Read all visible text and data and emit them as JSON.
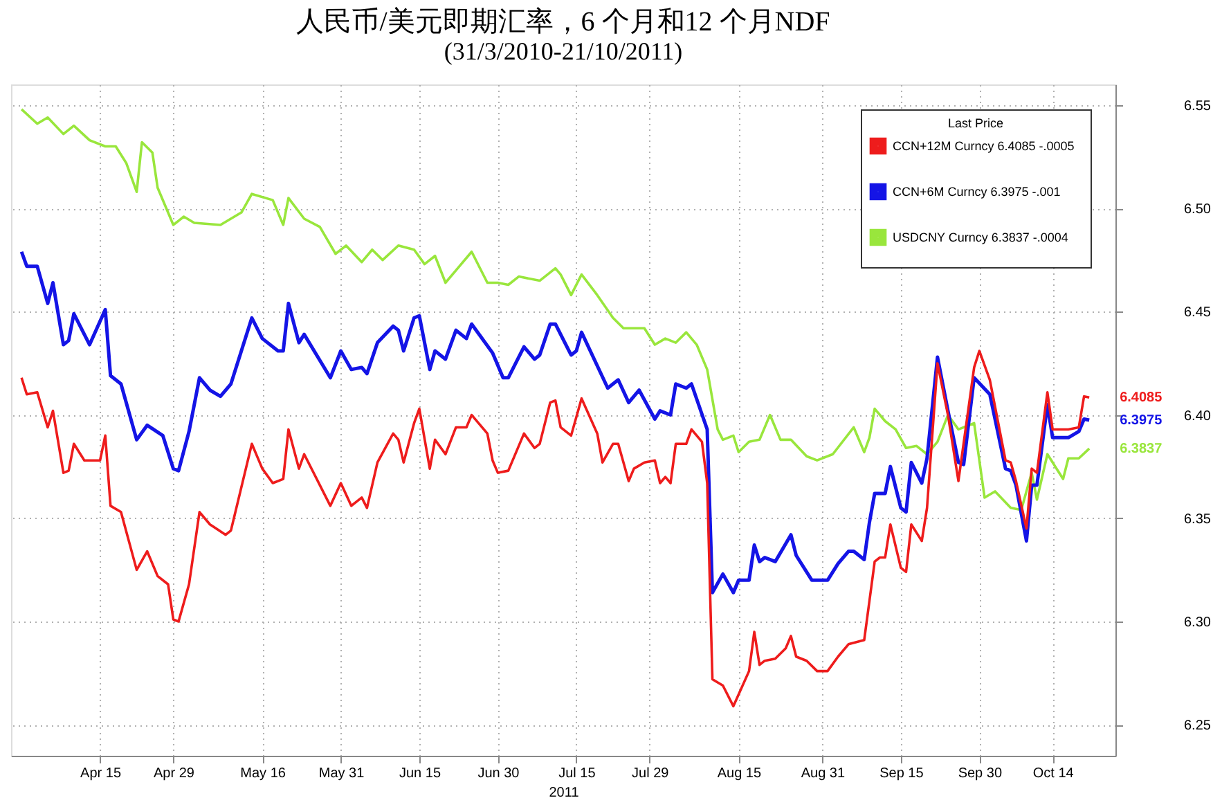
{
  "chart_data": {
    "type": "line",
    "title": "人民币/美元即期汇率，6 个月和12 个月NDF",
    "subtitle": "(31/3/2010-21/10/2011)",
    "xlabel": "2011",
    "legend_title": "Last Price",
    "legend": "top right",
    "grid": true,
    "marker": "none",
    "line_style": "solid",
    "xlim": [
      "2011-03-29",
      "2011-10-26"
    ],
    "xticks": [
      {
        "value": "2011-04-15",
        "label": "Apr 15"
      },
      {
        "value": "2011-04-29",
        "label": "Apr 29"
      },
      {
        "value": "2011-05-16",
        "label": "May 16"
      },
      {
        "value": "2011-05-31",
        "label": "May 31"
      },
      {
        "value": "2011-06-15",
        "label": "Jun 15"
      },
      {
        "value": "2011-06-30",
        "label": "Jun 30"
      },
      {
        "value": "2011-07-15",
        "label": "Jul 15"
      },
      {
        "value": "2011-07-29",
        "label": "Jul 29"
      },
      {
        "value": "2011-08-15",
        "label": "Aug 15"
      },
      {
        "value": "2011-08-31",
        "label": "Aug 31"
      },
      {
        "value": "2011-09-15",
        "label": "Sep 15"
      },
      {
        "value": "2011-09-30",
        "label": "Sep 30"
      },
      {
        "value": "2011-10-14",
        "label": "Oct 14"
      }
    ],
    "ylim": [
      6.235,
      6.56
    ],
    "yticks": [
      6.25,
      {
        "value": 6.3,
        "label": "6.30"
      },
      6.35,
      {
        "value": 6.4,
        "label": "6.40"
      },
      6.45,
      {
        "value": 6.5,
        "label": "6.50"
      },
      6.55
    ],
    "annotations": [
      {
        "text": "6.4085",
        "x": "2011-10-21",
        "y": 6.4085
      },
      {
        "text": "6.3975",
        "x": "2011-10-21",
        "y": 6.3975
      },
      {
        "text": "6.3837",
        "x": "2011-10-21",
        "y": 6.3837
      }
    ],
    "series": [
      {
        "name": "CCN+12M Curncy  6.4085  -.0005",
        "color": "#ee1c1c",
        "x": [
          "2011-03-31",
          "2011-04-01",
          "2011-04-03",
          "2011-04-05",
          "2011-04-06",
          "2011-04-08",
          "2011-04-09",
          "2011-04-10",
          "2011-04-12",
          "2011-04-15",
          "2011-04-16",
          "2011-04-17",
          "2011-04-19",
          "2011-04-22",
          "2011-04-24",
          "2011-04-26",
          "2011-04-28",
          "2011-04-29",
          "2011-04-30",
          "2011-05-02",
          "2011-05-04",
          "2011-05-06",
          "2011-05-09",
          "2011-05-10",
          "2011-05-14",
          "2011-05-16",
          "2011-05-18",
          "2011-05-20",
          "2011-05-21",
          "2011-05-23",
          "2011-05-24",
          "2011-05-29",
          "2011-05-31",
          "2011-06-02",
          "2011-06-04",
          "2011-06-05",
          "2011-06-07",
          "2011-06-10",
          "2011-06-11",
          "2011-06-12",
          "2011-06-14",
          "2011-06-15",
          "2011-06-17",
          "2011-06-18",
          "2011-06-20",
          "2011-06-22",
          "2011-06-24",
          "2011-06-25",
          "2011-06-28",
          "2011-06-29",
          "2011-06-30",
          "2011-07-02",
          "2011-07-05",
          "2011-07-07",
          "2011-07-08",
          "2011-07-10",
          "2011-07-11",
          "2011-07-12",
          "2011-07-14",
          "2011-07-16",
          "2011-07-19",
          "2011-07-20",
          "2011-07-22",
          "2011-07-23",
          "2011-07-25",
          "2011-07-26",
          "2011-07-28",
          "2011-07-30",
          "2011-07-31",
          "2011-08-01",
          "2011-08-02",
          "2011-08-03",
          "2011-08-05",
          "2011-08-06",
          "2011-08-08",
          "2011-08-09",
          "2011-08-10",
          "2011-08-12",
          "2011-08-14",
          "2011-08-17",
          "2011-08-18",
          "2011-08-19",
          "2011-08-20",
          "2011-08-22",
          "2011-08-24",
          "2011-08-25",
          "2011-08-26",
          "2011-08-28",
          "2011-08-30",
          "2011-09-01",
          "2011-09-03",
          "2011-09-05",
          "2011-09-08",
          "2011-09-09",
          "2011-09-10",
          "2011-09-11",
          "2011-09-12",
          "2011-09-13",
          "2011-09-15",
          "2011-09-16",
          "2011-09-17",
          "2011-09-19",
          "2011-09-20",
          "2011-09-22",
          "2011-09-24",
          "2011-09-26",
          "2011-09-29",
          "2011-09-30",
          "2011-10-02",
          "2011-10-05",
          "2011-10-06",
          "2011-10-07",
          "2011-10-09",
          "2011-10-10",
          "2011-10-11",
          "2011-10-13",
          "2011-10-14",
          "2011-10-17",
          "2011-10-19",
          "2011-10-20",
          "2011-10-21"
        ],
        "values": [
          6.418,
          6.41,
          6.411,
          6.394,
          6.402,
          6.372,
          6.373,
          6.386,
          6.378,
          6.378,
          6.39,
          6.356,
          6.353,
          6.325,
          6.334,
          6.322,
          6.318,
          6.301,
          6.3,
          6.318,
          6.353,
          6.347,
          6.342,
          6.344,
          6.386,
          6.374,
          6.367,
          6.369,
          6.393,
          6.374,
          6.381,
          6.356,
          6.367,
          6.356,
          6.36,
          6.355,
          6.377,
          6.391,
          6.388,
          6.377,
          6.396,
          6.403,
          6.374,
          6.388,
          6.381,
          6.394,
          6.394,
          6.4,
          6.391,
          6.378,
          6.372,
          6.373,
          6.391,
          6.384,
          6.386,
          6.406,
          6.407,
          6.394,
          6.39,
          6.408,
          6.391,
          6.377,
          6.386,
          6.386,
          6.368,
          6.374,
          6.377,
          6.378,
          6.367,
          6.37,
          6.367,
          6.386,
          6.386,
          6.393,
          6.387,
          6.367,
          6.272,
          6.269,
          6.259,
          6.276,
          6.295,
          6.279,
          6.281,
          6.282,
          6.287,
          6.293,
          6.283,
          6.281,
          6.276,
          6.276,
          6.283,
          6.289,
          6.291,
          6.31,
          6.329,
          6.331,
          6.331,
          6.347,
          6.326,
          6.324,
          6.347,
          6.339,
          6.355,
          6.425,
          6.4,
          6.368,
          6.423,
          6.431,
          6.417,
          6.378,
          6.377,
          6.368,
          6.345,
          6.374,
          6.372,
          6.411,
          6.393,
          6.393,
          6.394,
          6.409,
          6.4085
        ]
      },
      {
        "name": "CCN+6M Curncy  6.3975  -.001",
        "color": "#1414e6",
        "x": [
          "2011-03-31",
          "2011-04-01",
          "2011-04-03",
          "2011-04-05",
          "2011-04-06",
          "2011-04-08",
          "2011-04-09",
          "2011-04-10",
          "2011-04-13",
          "2011-04-16",
          "2011-04-17",
          "2011-04-19",
          "2011-04-22",
          "2011-04-24",
          "2011-04-27",
          "2011-04-29",
          "2011-04-30",
          "2011-05-02",
          "2011-05-04",
          "2011-05-06",
          "2011-05-08",
          "2011-05-10",
          "2011-05-14",
          "2011-05-16",
          "2011-05-19",
          "2011-05-20",
          "2011-05-21",
          "2011-05-23",
          "2011-05-24",
          "2011-05-29",
          "2011-05-31",
          "2011-06-02",
          "2011-06-04",
          "2011-06-05",
          "2011-06-07",
          "2011-06-10",
          "2011-06-11",
          "2011-06-12",
          "2011-06-14",
          "2011-06-15",
          "2011-06-17",
          "2011-06-18",
          "2011-06-20",
          "2011-06-22",
          "2011-06-24",
          "2011-06-25",
          "2011-06-29",
          "2011-07-01",
          "2011-07-02",
          "2011-07-05",
          "2011-07-07",
          "2011-07-08",
          "2011-07-10",
          "2011-07-11",
          "2011-07-14",
          "2011-07-15",
          "2011-07-16",
          "2011-07-21",
          "2011-07-23",
          "2011-07-25",
          "2011-07-27",
          "2011-07-30",
          "2011-07-31",
          "2011-08-02",
          "2011-08-03",
          "2011-08-05",
          "2011-08-06",
          "2011-08-09",
          "2011-08-10",
          "2011-08-12",
          "2011-08-14",
          "2011-08-15",
          "2011-08-17",
          "2011-08-18",
          "2011-08-19",
          "2011-08-20",
          "2011-08-22",
          "2011-08-25",
          "2011-08-26",
          "2011-08-29",
          "2011-09-01",
          "2011-09-03",
          "2011-09-05",
          "2011-09-06",
          "2011-09-08",
          "2011-09-09",
          "2011-09-10",
          "2011-09-12",
          "2011-09-13",
          "2011-09-15",
          "2011-09-16",
          "2011-09-17",
          "2011-09-19",
          "2011-09-20",
          "2011-09-22",
          "2011-09-24",
          "2011-09-26",
          "2011-09-27",
          "2011-09-29",
          "2011-10-02",
          "2011-10-05",
          "2011-10-06",
          "2011-10-07",
          "2011-10-09",
          "2011-10-10",
          "2011-10-11",
          "2011-10-13",
          "2011-10-14",
          "2011-10-17",
          "2011-10-19",
          "2011-10-20",
          "2011-10-21"
        ],
        "values": [
          6.479,
          6.472,
          6.472,
          6.454,
          6.464,
          6.434,
          6.436,
          6.449,
          6.434,
          6.451,
          6.419,
          6.415,
          6.388,
          6.395,
          6.39,
          6.374,
          6.373,
          6.392,
          6.418,
          6.412,
          6.409,
          6.415,
          6.447,
          6.437,
          6.431,
          6.431,
          6.454,
          6.435,
          6.439,
          6.418,
          6.431,
          6.422,
          6.423,
          6.42,
          6.435,
          6.443,
          6.441,
          6.431,
          6.447,
          6.448,
          6.422,
          6.431,
          6.427,
          6.441,
          6.437,
          6.444,
          6.43,
          6.418,
          6.418,
          6.433,
          6.427,
          6.429,
          6.444,
          6.444,
          6.429,
          6.431,
          6.44,
          6.413,
          6.417,
          6.406,
          6.412,
          6.398,
          6.402,
          6.4,
          6.415,
          6.413,
          6.415,
          6.393,
          6.314,
          6.323,
          6.314,
          6.32,
          6.32,
          6.337,
          6.329,
          6.331,
          6.329,
          6.342,
          6.332,
          6.32,
          6.32,
          6.328,
          6.334,
          6.334,
          6.33,
          6.348,
          6.362,
          6.362,
          6.375,
          6.355,
          6.353,
          6.377,
          6.367,
          6.379,
          6.428,
          6.402,
          6.377,
          6.376,
          6.418,
          6.41,
          6.374,
          6.373,
          6.366,
          6.339,
          6.366,
          6.366,
          6.405,
          6.389,
          6.389,
          6.392,
          6.398,
          6.3975
        ]
      },
      {
        "name": "USDCNY Curncy  6.3837  -.0004",
        "color": "#99e63c",
        "x": [
          "2011-03-31",
          "2011-04-03",
          "2011-04-05",
          "2011-04-08",
          "2011-04-10",
          "2011-04-13",
          "2011-04-16",
          "2011-04-18",
          "2011-04-20",
          "2011-04-22",
          "2011-04-23",
          "2011-04-25",
          "2011-04-26",
          "2011-04-29",
          "2011-05-01",
          "2011-05-03",
          "2011-05-08",
          "2011-05-12",
          "2011-05-14",
          "2011-05-18",
          "2011-05-20",
          "2011-05-21",
          "2011-05-24",
          "2011-05-27",
          "2011-05-30",
          "2011-06-01",
          "2011-06-04",
          "2011-06-06",
          "2011-06-08",
          "2011-06-11",
          "2011-06-14",
          "2011-06-16",
          "2011-06-18",
          "2011-06-20",
          "2011-06-22",
          "2011-06-25",
          "2011-06-28",
          "2011-06-30",
          "2011-07-02",
          "2011-07-04",
          "2011-07-08",
          "2011-07-11",
          "2011-07-12",
          "2011-07-14",
          "2011-07-16",
          "2011-07-19",
          "2011-07-22",
          "2011-07-24",
          "2011-07-28",
          "2011-07-30",
          "2011-08-01",
          "2011-08-03",
          "2011-08-05",
          "2011-08-07",
          "2011-08-09",
          "2011-08-11",
          "2011-08-12",
          "2011-08-14",
          "2011-08-15",
          "2011-08-17",
          "2011-08-19",
          "2011-08-21",
          "2011-08-23",
          "2011-08-25",
          "2011-08-28",
          "2011-08-30",
          "2011-09-02",
          "2011-09-06",
          "2011-09-08",
          "2011-09-09",
          "2011-09-10",
          "2011-09-12",
          "2011-09-14",
          "2011-09-16",
          "2011-09-18",
          "2011-09-20",
          "2011-09-22",
          "2011-09-24",
          "2011-09-26",
          "2011-09-29",
          "2011-10-01",
          "2011-10-03",
          "2011-10-06",
          "2011-10-08",
          "2011-10-10",
          "2011-10-11",
          "2011-10-13",
          "2011-10-16",
          "2011-10-17",
          "2011-10-19",
          "2011-10-21"
        ],
        "values": [
          6.548,
          6.541,
          6.544,
          6.536,
          6.54,
          6.533,
          6.53,
          6.53,
          6.522,
          6.508,
          6.532,
          6.527,
          6.51,
          6.492,
          6.496,
          6.493,
          6.492,
          6.498,
          6.507,
          6.504,
          6.492,
          6.505,
          6.495,
          6.491,
          6.478,
          6.482,
          6.474,
          6.48,
          6.475,
          6.482,
          6.48,
          6.473,
          6.477,
          6.464,
          6.47,
          6.479,
          6.464,
          6.464,
          6.463,
          6.467,
          6.465,
          6.471,
          6.468,
          6.458,
          6.468,
          6.458,
          6.447,
          6.442,
          6.442,
          6.434,
          6.437,
          6.435,
          6.44,
          6.434,
          6.422,
          6.393,
          6.388,
          6.39,
          6.382,
          6.387,
          6.388,
          6.4,
          6.388,
          6.388,
          6.38,
          6.378,
          6.381,
          6.394,
          6.382,
          6.389,
          6.403,
          6.397,
          6.393,
          6.384,
          6.385,
          6.381,
          6.387,
          6.4,
          6.393,
          6.396,
          6.36,
          6.363,
          6.355,
          6.354,
          6.372,
          6.359,
          6.381,
          6.369,
          6.379,
          6.379,
          6.3837
        ]
      }
    ]
  }
}
